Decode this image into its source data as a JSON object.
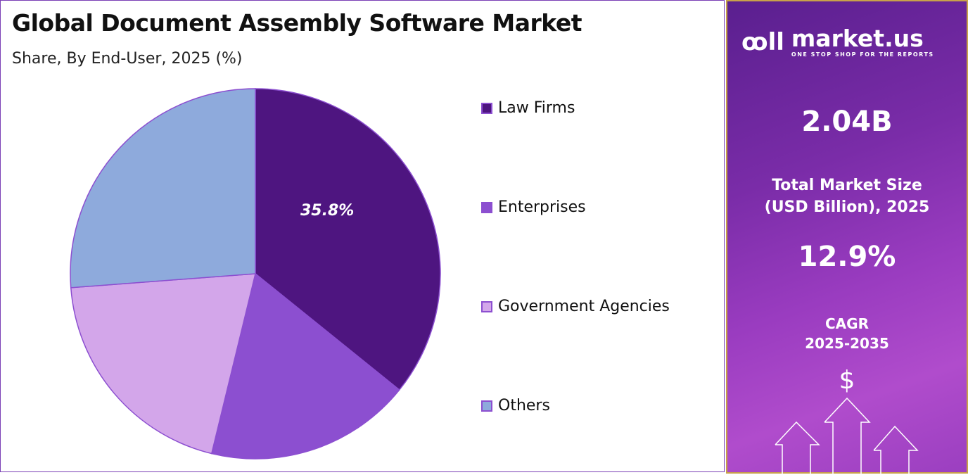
{
  "header": {
    "title": "Global Document Assembly Software Market",
    "subtitle": "Share, By End-User, 2025 (%)"
  },
  "chart_data": {
    "type": "pie",
    "title": "Global Document Assembly Software Market",
    "subtitle": "Share, By End-User, 2025 (%)",
    "categories": [
      "Law Firms",
      "Enterprises",
      "Government Agencies",
      "Others"
    ],
    "values": [
      35.8,
      18.0,
      20.0,
      26.2
    ],
    "colors": [
      "#4e1580",
      "#8c4fd0",
      "#d3a6ea",
      "#8eaadc"
    ],
    "data_labels": [
      "35.8%",
      "",
      "",
      ""
    ],
    "start_angle": "12 o'clock",
    "direction": "clockwise",
    "legend_position": "right"
  },
  "side_panel": {
    "brand": "market.us",
    "tagline": "ONE STOP SHOP FOR THE REPORTS",
    "market_size": "2.04B",
    "market_size_label_1": "Total Market Size",
    "market_size_label_2": "(USD Billion), 2025",
    "cagr": "12.9%",
    "cagr_label_1": "CAGR",
    "cagr_label_2": "2025-2035",
    "dollar": "$"
  }
}
